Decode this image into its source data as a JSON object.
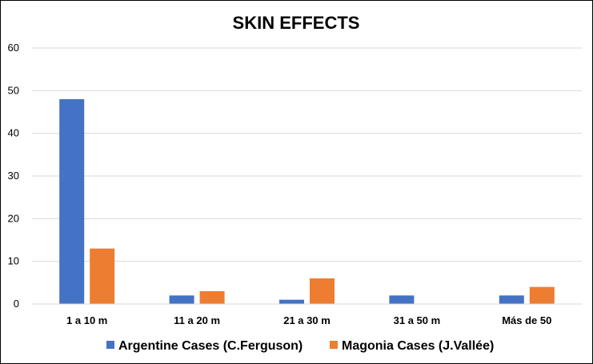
{
  "chart_data": {
    "type": "bar",
    "title": "SKIN EFFECTS",
    "xlabel": "",
    "ylabel": "",
    "categories": [
      "1 a 10 m",
      "11 a 20 m",
      "21 a 30 m",
      "31 a 50 m",
      "Más de 50"
    ],
    "series": [
      {
        "name": "Argentine Cases (C.Ferguson)",
        "values": [
          48,
          2,
          1,
          2,
          2
        ],
        "color": "#4472C4"
      },
      {
        "name": "Magonia Cases (J.Vallée)",
        "values": [
          13,
          3,
          6,
          0,
          4
        ],
        "color": "#ED7D31"
      }
    ],
    "ylim": [
      0,
      60
    ],
    "yticks": [
      "0",
      "10",
      "20",
      "30",
      "40",
      "50",
      "60"
    ],
    "grid": true,
    "legend": "bottom"
  }
}
